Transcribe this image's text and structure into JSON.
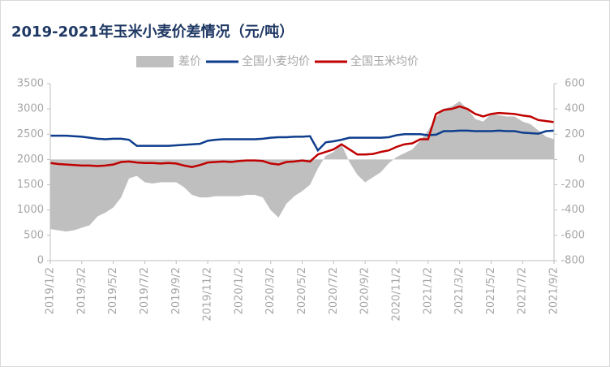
{
  "chart_data": {
    "type": "combo",
    "title": "2019-2021年玉米小麦价差情况（元/吨）",
    "categories": [
      "2019/1/2",
      null,
      null,
      null,
      "2019/3/2",
      null,
      null,
      null,
      "2019/5/2",
      null,
      null,
      null,
      "2019/7/2",
      null,
      null,
      null,
      "2019/9/2",
      null,
      null,
      null,
      "2019/11/2",
      null,
      null,
      null,
      "2020/1/2",
      null,
      null,
      null,
      "2020/3/2",
      null,
      null,
      null,
      "2020/5/2",
      null,
      null,
      null,
      "2020/7/2",
      null,
      null,
      null,
      "2020/9/2",
      null,
      null,
      null,
      "2020/11/2",
      null,
      null,
      null,
      "2021/1/2",
      null,
      null,
      null,
      "2021/3/2",
      null,
      null,
      null,
      "2021/5/2",
      null,
      null,
      null,
      "2021/7/2",
      null,
      null,
      null,
      "2021/9/2"
    ],
    "series": [
      {
        "name": "差价",
        "kind": "area",
        "axis": "y2",
        "color": "#bfbfbf",
        "values": [
          -550,
          -560,
          -570,
          -560,
          -540,
          -520,
          -450,
          -420,
          -380,
          -300,
          -150,
          -130,
          -180,
          -190,
          -180,
          -180,
          -180,
          -220,
          -280,
          -300,
          -300,
          -290,
          -290,
          -290,
          -290,
          -280,
          -280,
          -300,
          -400,
          -460,
          -350,
          -290,
          -250,
          -200,
          -70,
          30,
          60,
          120,
          -20,
          -120,
          -180,
          -140,
          -100,
          -30,
          20,
          50,
          80,
          150,
          230,
          330,
          400,
          420,
          460,
          400,
          320,
          300,
          360,
          350,
          340,
          340,
          300,
          280,
          230,
          180,
          160
        ]
      },
      {
        "name": "全国小麦均价",
        "kind": "line",
        "color": "#0d3d8c",
        "values": [
          2470,
          2470,
          2470,
          2460,
          2450,
          2430,
          2410,
          2400,
          2410,
          2410,
          2390,
          2270,
          2270,
          2270,
          2270,
          2270,
          2280,
          2290,
          2300,
          2310,
          2370,
          2390,
          2400,
          2400,
          2400,
          2400,
          2400,
          2410,
          2430,
          2440,
          2440,
          2450,
          2450,
          2460,
          2180,
          2340,
          2360,
          2390,
          2430,
          2430,
          2430,
          2430,
          2430,
          2440,
          2480,
          2500,
          2500,
          2500,
          2480,
          2490,
          2560,
          2560,
          2570,
          2570,
          2560,
          2560,
          2560,
          2570,
          2560,
          2560,
          2530,
          2520,
          2510,
          2560,
          2570
        ]
      },
      {
        "name": "全国玉米均价",
        "kind": "line",
        "color": "#c00000",
        "values": [
          1930,
          1910,
          1900,
          1890,
          1880,
          1880,
          1870,
          1880,
          1900,
          1950,
          1960,
          1940,
          1930,
          1930,
          1920,
          1930,
          1920,
          1880,
          1850,
          1890,
          1940,
          1950,
          1960,
          1950,
          1970,
          1980,
          1980,
          1970,
          1920,
          1900,
          1950,
          1960,
          1980,
          1960,
          2100,
          2150,
          2200,
          2300,
          2200,
          2100,
          2100,
          2110,
          2150,
          2180,
          2250,
          2300,
          2320,
          2400,
          2400,
          2900,
          2980,
          3000,
          3050,
          3000,
          2900,
          2850,
          2900,
          2920,
          2910,
          2900,
          2870,
          2850,
          2780,
          2760,
          2740
        ]
      }
    ],
    "ylim": [
      0,
      3500
    ],
    "yticks": [
      0,
      500,
      1000,
      1500,
      2000,
      2500,
      3000,
      3500
    ],
    "y2lim": [
      -800,
      600
    ],
    "y2ticks": [
      -800,
      -600,
      -400,
      -200,
      0,
      200,
      400,
      600
    ]
  }
}
